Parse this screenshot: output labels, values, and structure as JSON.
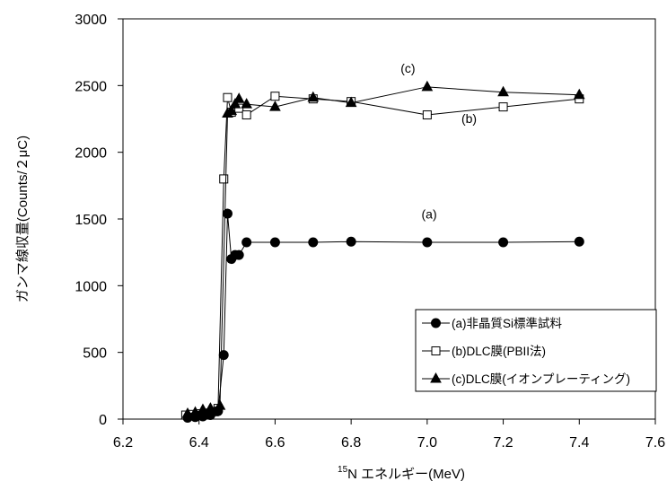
{
  "chart_data": {
    "type": "scatter",
    "xlabel_sup": "15",
    "xlabel": "N エネルギー(MeV)",
    "ylabel": "ガンマ線収量(Counts/２μC)",
    "xlim": [
      6.2,
      7.6
    ],
    "ylim": [
      0,
      3000
    ],
    "x_ticks": [
      "6.2",
      "6.4",
      "6.6",
      "6.8",
      "7.0",
      "7.2",
      "7.4",
      "7.6"
    ],
    "y_ticks": [
      "0",
      "500",
      "1000",
      "1500",
      "2000",
      "2500",
      "3000"
    ],
    "grid": false,
    "legend_position": "bottom-right",
    "series": [
      {
        "name": "(a)非晶質Si標準試料",
        "marker": "filled-circle",
        "color": "#000000",
        "points": [
          [
            6.37,
            10
          ],
          [
            6.39,
            15
          ],
          [
            6.41,
            20
          ],
          [
            6.43,
            30
          ],
          [
            6.45,
            60
          ],
          [
            6.465,
            480
          ],
          [
            6.475,
            1540
          ],
          [
            6.485,
            1200
          ],
          [
            6.495,
            1230
          ],
          [
            6.505,
            1230
          ],
          [
            6.525,
            1325
          ],
          [
            6.6,
            1325
          ],
          [
            6.7,
            1325
          ],
          [
            6.8,
            1330
          ],
          [
            7.0,
            1325
          ],
          [
            7.2,
            1325
          ],
          [
            7.4,
            1330
          ]
        ]
      },
      {
        "name": "(b)DLC膜(PBII法)",
        "marker": "open-square",
        "color": "#000000",
        "points": [
          [
            6.365,
            30
          ],
          [
            6.38,
            35
          ],
          [
            6.4,
            40
          ],
          [
            6.42,
            45
          ],
          [
            6.44,
            55
          ],
          [
            6.45,
            80
          ],
          [
            6.465,
            1800
          ],
          [
            6.475,
            2410
          ],
          [
            6.485,
            2300
          ],
          [
            6.505,
            2330
          ],
          [
            6.525,
            2280
          ],
          [
            6.6,
            2420
          ],
          [
            6.7,
            2400
          ],
          [
            6.8,
            2380
          ],
          [
            7.0,
            2280
          ],
          [
            7.2,
            2340
          ],
          [
            7.4,
            2400
          ]
        ]
      },
      {
        "name": "(c)DLC膜(イオンプレーティング)",
        "marker": "filled-triangle",
        "color": "#000000",
        "points": [
          [
            6.37,
            40
          ],
          [
            6.39,
            50
          ],
          [
            6.41,
            70
          ],
          [
            6.43,
            80
          ],
          [
            6.455,
            100
          ],
          [
            6.475,
            2290
          ],
          [
            6.485,
            2310
          ],
          [
            6.495,
            2360
          ],
          [
            6.505,
            2400
          ],
          [
            6.525,
            2360
          ],
          [
            6.6,
            2340
          ],
          [
            6.7,
            2410
          ],
          [
            6.8,
            2370
          ],
          [
            7.0,
            2490
          ],
          [
            7.2,
            2450
          ],
          [
            7.4,
            2430
          ]
        ]
      }
    ],
    "annotations": [
      {
        "label": "(c)",
        "x": 6.93,
        "y": 2595
      },
      {
        "label": "(b)",
        "x": 7.09,
        "y": 2220
      },
      {
        "label": "(a)",
        "x": 6.985,
        "y": 1505
      }
    ]
  }
}
